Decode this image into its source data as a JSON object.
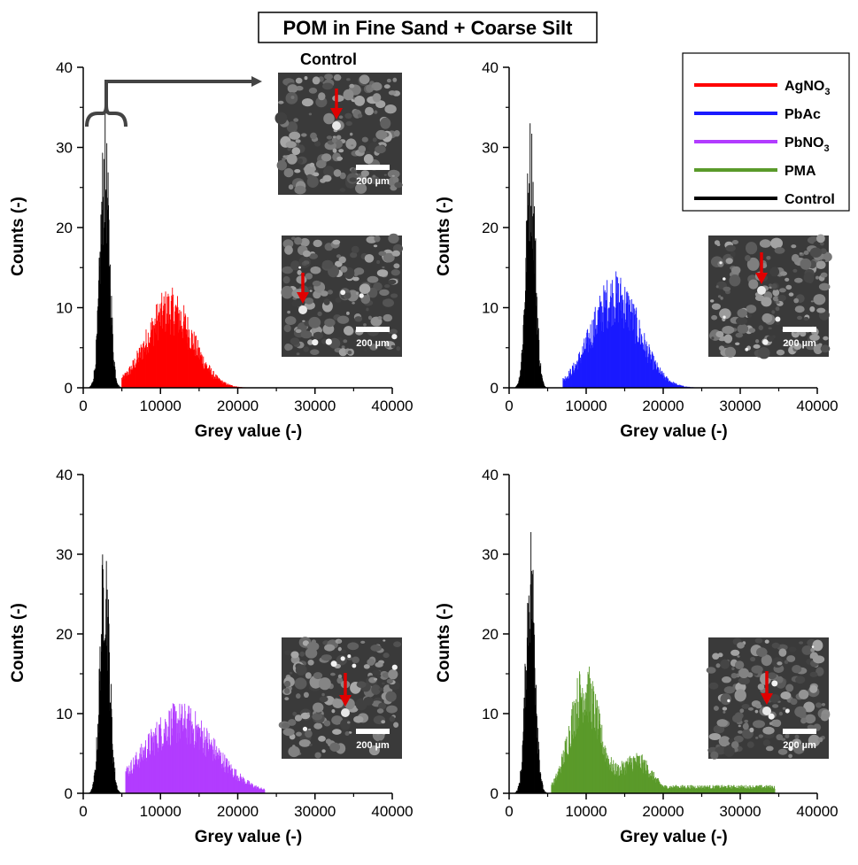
{
  "figure": {
    "title": "POM in Fine Sand + Coarse Silt"
  },
  "legend": [
    {
      "label": "AgNO",
      "sub": "3",
      "color": "#ff0000"
    },
    {
      "label": "PbAc",
      "sub": "",
      "color": "#1a1aff"
    },
    {
      "label": "PbNO",
      "sub": "3",
      "color": "#b23cff"
    },
    {
      "label": "PMA",
      "sub": "",
      "color": "#5a9a2a"
    },
    {
      "label": "Control",
      "sub": "",
      "color": "#000000"
    }
  ],
  "insets": {
    "control_title": "Control",
    "scale_label": "200 µm"
  },
  "chart_data": [
    {
      "type": "bar",
      "panel": "top-left",
      "xlabel": "Grey value (-)",
      "ylabel": "Counts (-)",
      "xlim": [
        0,
        40000
      ],
      "ylim": [
        0,
        40
      ],
      "xticks": [
        "0",
        "10000",
        "20000",
        "30000",
        "40000"
      ],
      "yticks": [
        "0",
        "10",
        "20",
        "30",
        "40"
      ],
      "series": [
        {
          "name": "Control",
          "color": "#000000",
          "center": 2800,
          "width": 600,
          "peak": 33,
          "range": [
            800,
            5200
          ],
          "x": [
            1000,
            2000,
            2800,
            3600,
            4600
          ],
          "values": [
            2,
            18,
            33,
            18,
            2
          ]
        },
        {
          "name": "AgNO3",
          "color": "#ff0000",
          "center": 11200,
          "width": 3000,
          "peak": 12,
          "range": [
            5000,
            21500
          ],
          "x": [
            6000,
            9000,
            11200,
            14000,
            18000,
            21000
          ],
          "values": [
            1,
            6,
            12,
            6,
            2,
            1
          ]
        }
      ]
    },
    {
      "type": "bar",
      "panel": "top-right",
      "xlabel": "Grey value (-)",
      "ylabel": "Counts (-)",
      "xlim": [
        0,
        40000
      ],
      "ylim": [
        0,
        40
      ],
      "xticks": [
        "0",
        "10000",
        "20000",
        "30000",
        "40000"
      ],
      "yticks": [
        "0",
        "10",
        "20",
        "30",
        "40"
      ],
      "series": [
        {
          "name": "Control",
          "color": "#000000",
          "center": 2800,
          "width": 600,
          "peak": 33,
          "range": [
            800,
            5200
          ],
          "x": [
            1000,
            2000,
            2800,
            3600,
            4600
          ],
          "values": [
            2,
            18,
            33,
            18,
            2
          ]
        },
        {
          "name": "PbAc",
          "color": "#1a1aff",
          "center": 13800,
          "width": 3100,
          "peak": 14,
          "range": [
            7000,
            24800
          ],
          "x": [
            8000,
            11000,
            13800,
            17000,
            21000,
            24500
          ],
          "values": [
            1,
            6,
            14,
            6,
            2,
            1
          ]
        }
      ]
    },
    {
      "type": "bar",
      "panel": "bottom-left",
      "xlabel": "Grey value (-)",
      "ylabel": "Counts (-)",
      "xlim": [
        0,
        40000
      ],
      "ylim": [
        0,
        40
      ],
      "xticks": [
        "0",
        "10000",
        "20000",
        "30000",
        "40000"
      ],
      "yticks": [
        "0",
        "10",
        "20",
        "30",
        "40"
      ],
      "series": [
        {
          "name": "Control",
          "color": "#000000",
          "center": 2800,
          "width": 600,
          "peak": 33,
          "range": [
            800,
            5200
          ],
          "x": [
            1000,
            2000,
            2800,
            3600,
            4600
          ],
          "values": [
            2,
            18,
            33,
            18,
            2
          ]
        },
        {
          "name": "PbNO3",
          "color": "#b23cff",
          "center": 12500,
          "width": 4500,
          "peak": 11,
          "range": [
            5500,
            23500
          ],
          "x": [
            6000,
            9000,
            12500,
            16000,
            20000,
            23000
          ],
          "values": [
            2,
            6,
            11,
            7,
            3,
            1
          ]
        }
      ]
    },
    {
      "type": "bar",
      "panel": "bottom-right",
      "xlabel": "Grey value (-)",
      "ylabel": "Counts (-)",
      "xlim": [
        0,
        40000
      ],
      "ylim": [
        0,
        40
      ],
      "xticks": [
        "0",
        "10000",
        "20000",
        "30000",
        "40000"
      ],
      "yticks": [
        "0",
        "10",
        "20",
        "30",
        "40"
      ],
      "series": [
        {
          "name": "Control",
          "color": "#000000",
          "center": 2800,
          "width": 600,
          "peak": 33,
          "range": [
            800,
            5200
          ],
          "x": [
            1000,
            2000,
            2800,
            3600,
            4600
          ],
          "values": [
            2,
            18,
            33,
            18,
            2
          ]
        },
        {
          "name": "PMA",
          "color": "#5a9a2a",
          "center": 9800,
          "width": 1900,
          "peak": 16,
          "range": [
            5500,
            34500
          ],
          "second_center": 16500,
          "second_peak": 5,
          "second_width": 2000,
          "tail": 1,
          "x": [
            6000,
            8000,
            9800,
            12000,
            16500,
            22000,
            34000
          ],
          "values": [
            1,
            8,
            16,
            5,
            5,
            1,
            1
          ]
        }
      ]
    }
  ]
}
